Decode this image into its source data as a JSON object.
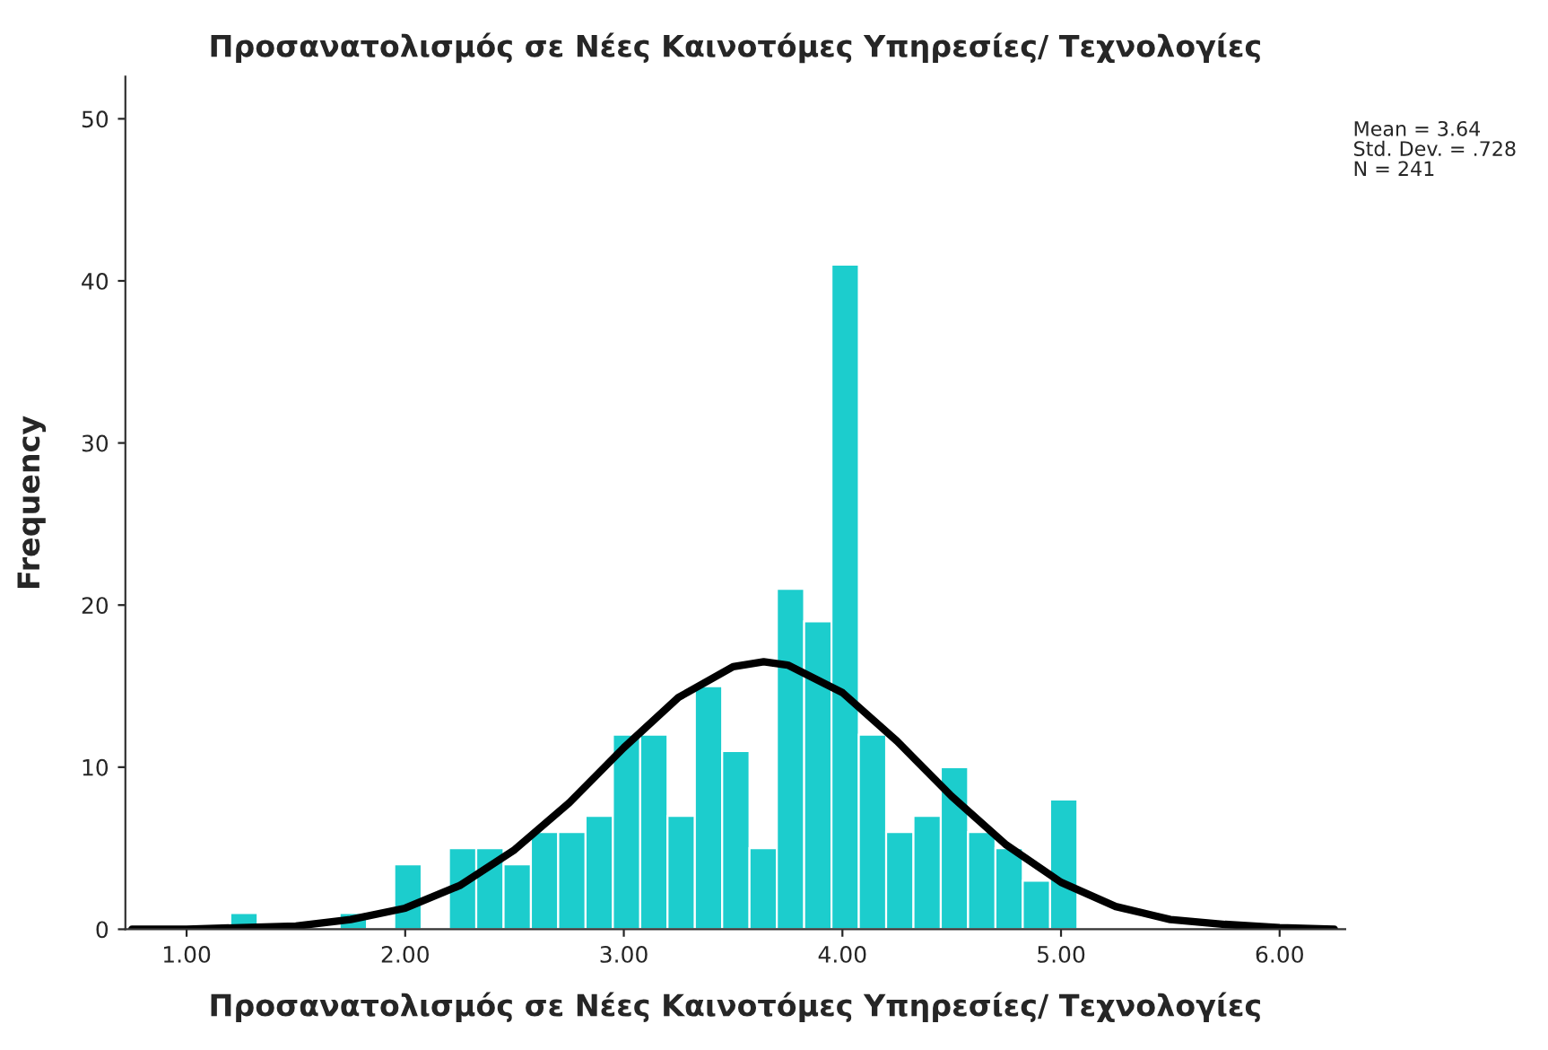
{
  "chart_data": {
    "type": "histogram",
    "title": "Προσανατολισμός σε Νέες Καινοτόμες Υπηρεσίες/ Τεχνολογίες",
    "xlabel": "Προσανατολισμός σε Νέες Καινοτόμες Υπηρεσίες/ Τεχνολογίες",
    "ylabel": "Frequency",
    "bins": [
      1.2,
      1.325,
      1.45,
      1.575,
      1.7,
      1.825,
      1.95,
      2.075,
      2.2,
      2.325,
      2.45,
      2.575,
      2.7,
      2.825,
      2.95,
      3.075,
      3.2,
      3.325,
      3.45,
      3.575,
      3.7,
      3.825,
      3.95,
      4.075,
      4.2,
      4.325,
      4.45,
      4.575,
      4.7,
      4.825,
      4.95,
      5.075
    ],
    "values": [
      1,
      0,
      0,
      0,
      1,
      0,
      4,
      0,
      5,
      5,
      4,
      6,
      6,
      7,
      12,
      12,
      7,
      15,
      11,
      5,
      21,
      19,
      41,
      12,
      6,
      7,
      10,
      6,
      5,
      3,
      8
    ],
    "color": "#1ccdcd",
    "series": [
      {
        "type": "line",
        "color": "#000000",
        "x": [
          0.75,
          1.0,
          1.25,
          1.5,
          1.75,
          2.0,
          2.25,
          2.5,
          2.75,
          3.0,
          3.25,
          3.5,
          3.64,
          3.75,
          4.0,
          4.25,
          4.5,
          4.75,
          5.0,
          5.25,
          5.5,
          5.75,
          6.0,
          6.25
        ],
        "values": [
          0.0,
          0.0,
          0.1,
          0.2,
          0.6,
          1.3,
          2.7,
          4.9,
          7.8,
          11.2,
          14.3,
          16.2,
          16.5,
          16.3,
          14.6,
          11.6,
          8.2,
          5.2,
          2.9,
          1.4,
          0.6,
          0.3,
          0.1,
          0.0
        ]
      }
    ],
    "xlim": [
      0.72,
      6.3
    ],
    "xticks": [
      {
        "value": 1,
        "label": "1.00"
      },
      {
        "value": 2,
        "label": "2.00"
      },
      {
        "value": 3,
        "label": "3.00"
      },
      {
        "value": 4,
        "label": "4.00"
      },
      {
        "value": 5,
        "label": "5.00"
      },
      {
        "value": 6,
        "label": "6.00"
      }
    ],
    "ylim": [
      0,
      52.6
    ],
    "yticks": [
      0,
      10,
      20,
      30,
      40,
      50
    ],
    "grid": false,
    "annotations": [
      "Mean = 3.64",
      "Std. Dev. = .728",
      "N = 241"
    ]
  }
}
